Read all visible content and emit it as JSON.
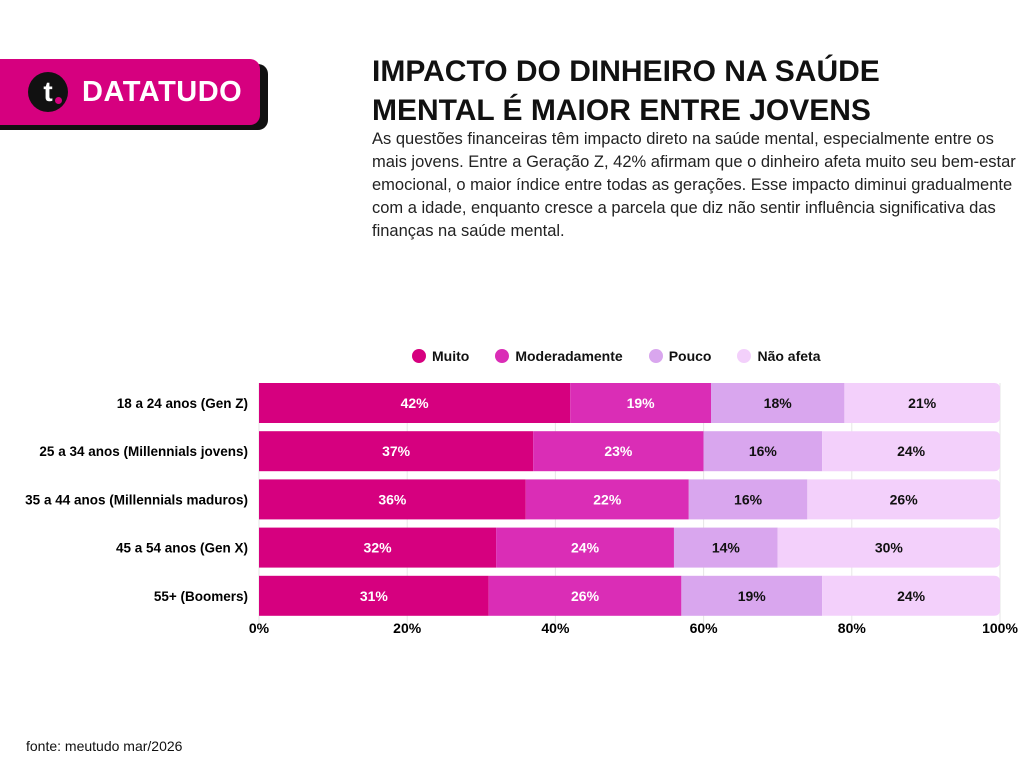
{
  "brand": {
    "name": "DATATUDO",
    "mark": "t"
  },
  "title": "IMPACTO DO DINHEIRO NA SAÚDE MENTAL É MAIOR ENTRE JOVENS",
  "subtitle": "As questões financeiras têm impacto direto na saúde mental, especialmente entre os mais jovens. Entre a Geração Z, 42% afirmam que o dinheiro afeta muito seu bem-estar emocional, o maior índice entre todas as gerações. Esse impacto diminui gradualmente com a idade, enquanto cresce a parcela que diz não sentir influência significativa das finanças na saúde mental.",
  "source": "fonte: meutudo mar/2026",
  "chart_data": {
    "type": "bar",
    "orientation": "horizontal",
    "stacked": true,
    "categories": [
      "18 a 24 anos (Gen Z)",
      "25 a 34 anos (Millennials jovens)",
      "35 a 44 anos (Millennials maduros)",
      "45 a 54 anos (Gen X)",
      "55+ (Boomers)"
    ],
    "series": [
      {
        "name": "Muito",
        "color": "#d6007f",
        "values": [
          42,
          37,
          36,
          32,
          31
        ]
      },
      {
        "name": "Moderadamente",
        "color": "#da2db6",
        "values": [
          19,
          23,
          22,
          24,
          26
        ]
      },
      {
        "name": "Pouco",
        "color": "#d9a6ee",
        "values": [
          18,
          16,
          16,
          14,
          19
        ]
      },
      {
        "name": "Não afeta",
        "color": "#f3d0fb",
        "values": [
          21,
          24,
          26,
          30,
          24
        ]
      }
    ],
    "xlim": [
      0,
      100
    ],
    "xticks": [
      "0%",
      "20%",
      "40%",
      "60%",
      "80%",
      "100%"
    ],
    "grid": true,
    "legend": "top"
  }
}
